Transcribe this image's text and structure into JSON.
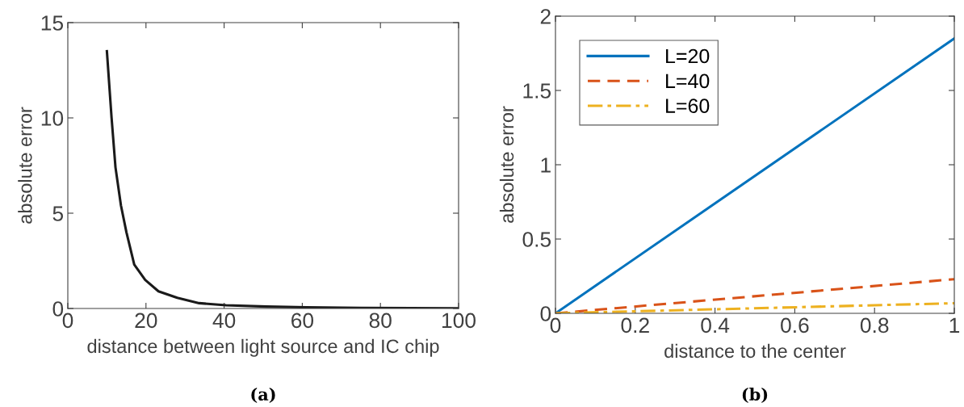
{
  "chart_data": [
    {
      "type": "line",
      "xlabel": "distance between light source and IC chip",
      "ylabel": "absolute error",
      "xlim": [
        0,
        100
      ],
      "xticks": [
        0,
        20,
        40,
        60,
        80,
        100
      ],
      "ylim": [
        0,
        15
      ],
      "yticks": [
        0,
        5,
        10,
        15
      ],
      "series": [
        {
          "color": "#1a1a1a",
          "x": [
            10,
            11.2,
            12.2,
            13.6,
            15,
            17,
            19.8,
            23.2,
            28,
            33.6,
            40.5,
            50.8,
            61,
            75,
            100
          ],
          "values": [
            13.5,
            10.0,
            7.4,
            5.4,
            4.0,
            2.3,
            1.5,
            0.9,
            0.56,
            0.28,
            0.17,
            0.1,
            0.06,
            0.03,
            0.01
          ]
        }
      ],
      "annotations": [
        "(a)"
      ],
      "grid": false,
      "legend": false
    },
    {
      "type": "line",
      "xlabel": "distance to the center",
      "ylabel": "absolute error",
      "xlim": [
        0,
        1
      ],
      "xticks": [
        0,
        0.2,
        0.4,
        0.6,
        0.8,
        1
      ],
      "ylim": [
        0,
        2
      ],
      "yticks": [
        0,
        0.5,
        1,
        1.5,
        2
      ],
      "series": [
        {
          "name": "L=20",
          "color": "#0072bd",
          "line_style": "solid",
          "x": [
            0,
            1
          ],
          "values": [
            0,
            1.85
          ]
        },
        {
          "name": "L=40",
          "color": "#d95319",
          "line_style": "dashed",
          "x": [
            0,
            1
          ],
          "values": [
            0,
            0.23
          ]
        },
        {
          "name": "L=60",
          "color": "#edb120",
          "line_style": "dashdot",
          "x": [
            0,
            1
          ],
          "values": [
            0,
            0.068
          ]
        }
      ],
      "annotations": [
        "(b)"
      ],
      "grid": false,
      "legend": "top left"
    }
  ]
}
